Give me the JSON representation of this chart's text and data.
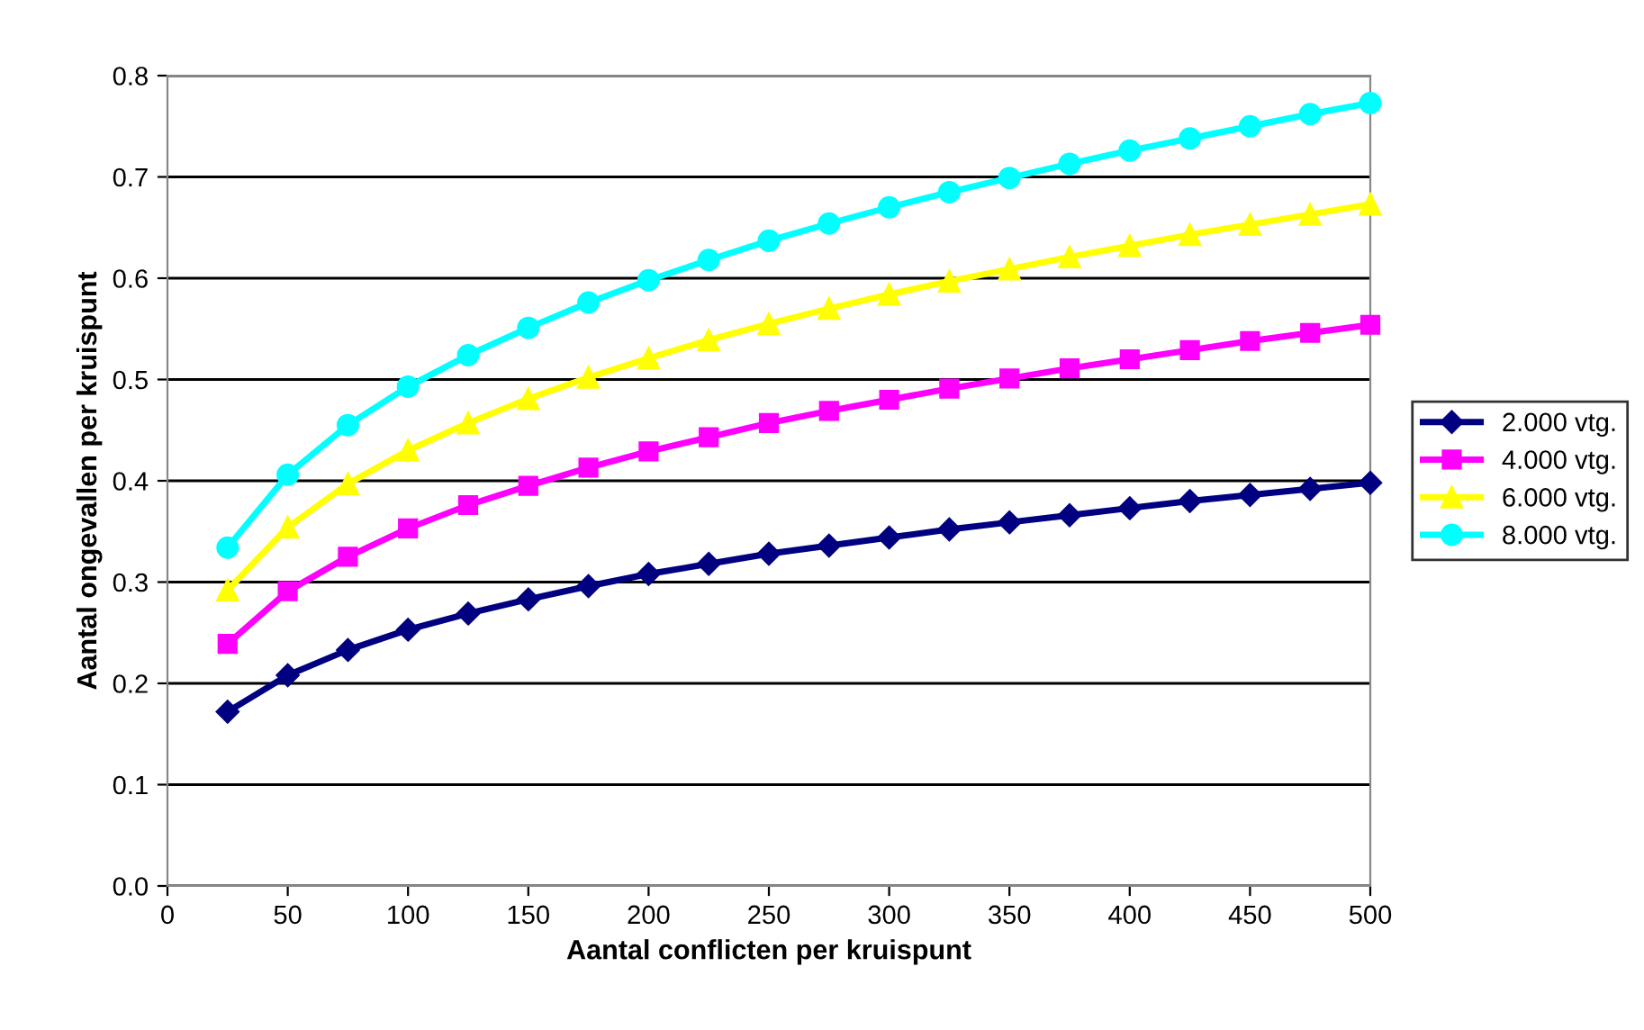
{
  "chart_data": {
    "type": "line",
    "xlabel": "Aantal conflicten per kruispunt",
    "ylabel": "Aantal ongevallen per kruispunt",
    "x": [
      25,
      50,
      75,
      100,
      125,
      150,
      175,
      200,
      225,
      250,
      275,
      300,
      325,
      350,
      375,
      400,
      425,
      450,
      475,
      500
    ],
    "series": [
      {
        "name": "2.000 vtg.",
        "color": "#000080",
        "marker": "diamond",
        "values": [
          0.172,
          0.208,
          0.233,
          0.253,
          0.269,
          0.283,
          0.296,
          0.308,
          0.318,
          0.328,
          0.336,
          0.344,
          0.352,
          0.359,
          0.366,
          0.373,
          0.38,
          0.386,
          0.392,
          0.398
        ]
      },
      {
        "name": "4.000 vtg.",
        "color": "#ff00ff",
        "marker": "square",
        "values": [
          0.239,
          0.291,
          0.325,
          0.353,
          0.376,
          0.395,
          0.413,
          0.429,
          0.443,
          0.457,
          0.469,
          0.48,
          0.491,
          0.501,
          0.511,
          0.52,
          0.529,
          0.538,
          0.546,
          0.554
        ]
      },
      {
        "name": "6.000 vtg.",
        "color": "#ffff00",
        "marker": "triangle",
        "values": [
          0.292,
          0.354,
          0.397,
          0.43,
          0.457,
          0.481,
          0.502,
          0.521,
          0.539,
          0.555,
          0.57,
          0.584,
          0.597,
          0.609,
          0.621,
          0.632,
          0.643,
          0.653,
          0.663,
          0.673
        ]
      },
      {
        "name": "8.000 vtg.",
        "color": "#00ffff",
        "marker": "circle",
        "values": [
          0.334,
          0.406,
          0.455,
          0.493,
          0.524,
          0.551,
          0.576,
          0.598,
          0.618,
          0.637,
          0.654,
          0.67,
          0.685,
          0.699,
          0.713,
          0.726,
          0.738,
          0.75,
          0.762,
          0.773
        ]
      }
    ],
    "xlim": [
      0,
      500
    ],
    "xticks": [
      0,
      50,
      100,
      150,
      200,
      250,
      300,
      350,
      400,
      450,
      500
    ],
    "ylim": [
      0,
      0.8
    ],
    "yticks": [
      {
        "value": 0,
        "label": "0.0"
      },
      0.1,
      0.2,
      0.3,
      0.4,
      0.5,
      0.6,
      0.7,
      0.8
    ],
    "grid": "y",
    "legend": "right"
  }
}
